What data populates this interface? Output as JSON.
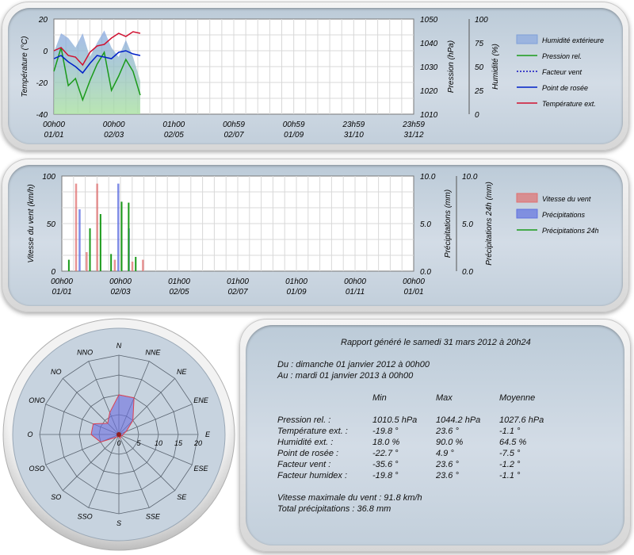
{
  "charts": [
    {
      "type": "line",
      "y_left": {
        "label": "Température (°C)",
        "min": -40,
        "max": 20,
        "ticks": [
          20,
          0,
          -20,
          -40
        ]
      },
      "y_right1": {
        "label": "Pression (hPa)",
        "min": 1010,
        "max": 1050,
        "ticks": [
          1050,
          1040,
          1030,
          1020,
          1010
        ]
      },
      "y_right2": {
        "label": "Humidité (%)",
        "min": 0,
        "max": 100,
        "ticks": [
          100,
          75,
          50,
          25,
          0
        ]
      },
      "x_ticks": [
        {
          "time": "00h00",
          "date": "01/01"
        },
        {
          "time": "00h00",
          "date": "02/03"
        },
        {
          "time": "01h00",
          "date": "02/05"
        },
        {
          "time": "00h59",
          "date": "02/07"
        },
        {
          "time": "00h59",
          "date": "01/09"
        },
        {
          "time": "23h59",
          "date": "31/10"
        },
        {
          "time": "23h59",
          "date": "31/12"
        }
      ],
      "legend": [
        {
          "name": "Humidité extérieure",
          "color": "#7fa0e0",
          "style": "area"
        },
        {
          "name": "Pression rel.",
          "color": "#1a9a1a",
          "style": "line"
        },
        {
          "name": "Facteur vent",
          "color": "#1010c0",
          "style": "dotted"
        },
        {
          "name": "Point de rosée",
          "color": "#0020c8",
          "style": "line"
        },
        {
          "name": "Température ext.",
          "color": "#d01030",
          "style": "line"
        }
      ],
      "series_estimated": {
        "x_fraction_of_year": [
          0.0,
          0.02,
          0.04,
          0.06,
          0.08,
          0.1,
          0.12,
          0.14,
          0.16,
          0.18,
          0.2,
          0.22,
          0.24
        ],
        "humidity_pct": [
          65,
          85,
          80,
          70,
          85,
          60,
          75,
          88,
          70,
          60,
          78,
          60,
          35
        ],
        "pressure_hpa": [
          1028,
          1038,
          1022,
          1025,
          1016,
          1024,
          1031,
          1036,
          1020,
          1026,
          1033,
          1028,
          1018
        ],
        "dew_point_c": [
          -5,
          -3,
          -7,
          -10,
          -14,
          -8,
          -3,
          -4,
          -5,
          -1,
          0,
          -2,
          -3
        ],
        "temperature_c": [
          0,
          2,
          -3,
          -4,
          -9,
          -1,
          3,
          4,
          8,
          11,
          9,
          12,
          11
        ]
      }
    },
    {
      "type": "bar",
      "y_left": {
        "label": "Vitesse du vent (km/h)",
        "min": 0,
        "max": 100,
        "ticks": [
          100,
          50,
          0
        ]
      },
      "y_right1": {
        "label": "Précipitations (mm)",
        "min": 0,
        "max": 10,
        "ticks": [
          "10.0",
          "5.0",
          "0.0"
        ]
      },
      "y_right2": {
        "label": "Précipitations 24h (mm)",
        "min": 0,
        "max": 10,
        "ticks": [
          "10.0",
          "5.0",
          "0.0"
        ]
      },
      "x_ticks": [
        {
          "time": "00h00",
          "date": "01/01"
        },
        {
          "time": "00h00",
          "date": "02/03"
        },
        {
          "time": "01h00",
          "date": "02/05"
        },
        {
          "time": "01h00",
          "date": "02/07"
        },
        {
          "time": "01h00",
          "date": "01/09"
        },
        {
          "time": "00h00",
          "date": "01/11"
        },
        {
          "time": "00h00",
          "date": "01/01"
        }
      ],
      "legend": [
        {
          "name": "Vitesse du vent",
          "color": "#e07070",
          "style": "area"
        },
        {
          "name": "Précipitations",
          "color": "#6070e0",
          "style": "area"
        },
        {
          "name": "Précipitations 24h",
          "color": "#1a9a1a",
          "style": "line"
        }
      ],
      "series_estimated": {
        "wind_kmh": [
          [
            0.04,
            92
          ],
          [
            0.1,
            92
          ],
          [
            0.07,
            20
          ],
          [
            0.15,
            12
          ],
          [
            0.2,
            10
          ],
          [
            0.23,
            12
          ]
        ],
        "precip_mm": [
          [
            0.05,
            6.5
          ],
          [
            0.16,
            9.2
          ],
          [
            0.19,
            4.5
          ]
        ],
        "precip24_mm": [
          [
            0.02,
            1.2
          ],
          [
            0.08,
            4.5
          ],
          [
            0.11,
            6.0
          ],
          [
            0.14,
            1.8
          ],
          [
            0.17,
            7.3
          ],
          [
            0.19,
            7.2
          ],
          [
            0.21,
            1.5
          ]
        ]
      }
    }
  ],
  "rose": {
    "type": "radar",
    "directions": [
      "N",
      "NNE",
      "NE",
      "ENE",
      "E",
      "ESE",
      "SE",
      "SSE",
      "S",
      "SSO",
      "SO",
      "OSO",
      "O",
      "ONO",
      "NO",
      "NNO"
    ],
    "radial_ticks": [
      "0",
      "5",
      "10",
      "15",
      "20"
    ],
    "max": 20,
    "values": [
      10,
      10,
      5,
      2,
      1,
      1,
      0.5,
      1,
      0.5,
      0.5,
      1,
      5,
      7,
      7,
      4,
      6
    ]
  },
  "report": {
    "title": "Rapport généré le samedi 31 mars 2012 à 20h24",
    "from": "Du : dimanche 01 janvier 2012 à 00h00",
    "to": "Au : mardi 01 janvier 2013 à 00h00",
    "headers": [
      "Min",
      "Max",
      "Moyenne"
    ],
    "rows": [
      {
        "label": "Pression rel. :",
        "min": "1010.5 hPa",
        "max": "1044.2 hPa",
        "avg": "1027.6 hPa"
      },
      {
        "label": "Température ext. :",
        "min": "-19.8 °",
        "max": "23.6 °",
        "avg": "-1.1 °"
      },
      {
        "label": "Humidité ext. :",
        "min": "18.0 %",
        "max": "90.0 %",
        "avg": "64.5 %"
      },
      {
        "label": "Point de rosée :",
        "min": "-22.7 °",
        "max": "4.9 °",
        "avg": "-7.5 °"
      },
      {
        "label": "Facteur vent :",
        "min": "-35.6 °",
        "max": "23.6 °",
        "avg": "-1.2 °"
      },
      {
        "label": "Facteur humidex :",
        "min": "-19.8 °",
        "max": "23.6 °",
        "avg": "-1.1 °"
      }
    ],
    "max_wind": "Vitesse maximale du vent : 91.8 km/h",
    "total_precip": "Total précipitations : 36.8 mm"
  }
}
